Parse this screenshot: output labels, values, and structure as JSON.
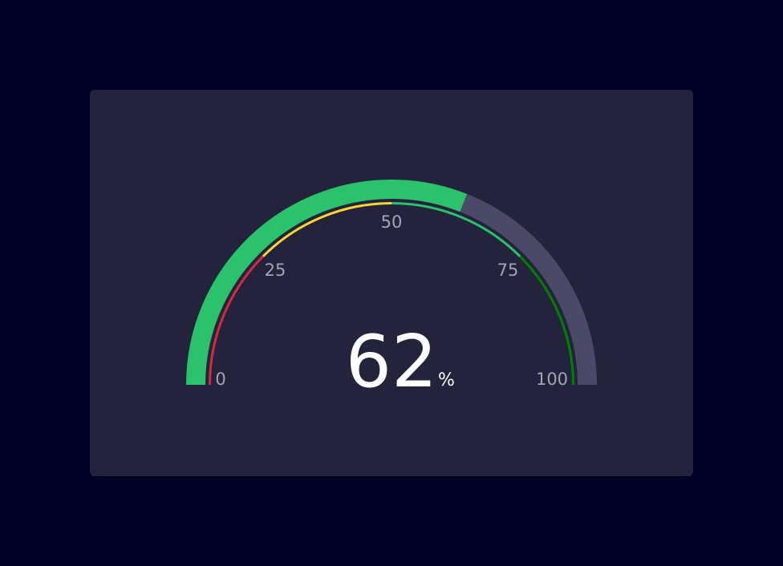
{
  "chart_data": {
    "type": "gauge",
    "value": 62,
    "unit": "%",
    "range": [
      0,
      100
    ],
    "tick_labels": [
      "0",
      "25",
      "50",
      "75",
      "100"
    ],
    "ticks": [
      0,
      25,
      50,
      75,
      100
    ],
    "value_color": "#2ac26a",
    "track_color": "#4a4a68",
    "thresholds": [
      {
        "from": 0,
        "to": 25,
        "color": "#dc2640"
      },
      {
        "from": 25,
        "to": 50,
        "color": "#fad630"
      },
      {
        "from": 50,
        "to": 75,
        "color": "#2ac26a"
      },
      {
        "from": 75,
        "to": 100,
        "color": "#008000"
      }
    ]
  }
}
